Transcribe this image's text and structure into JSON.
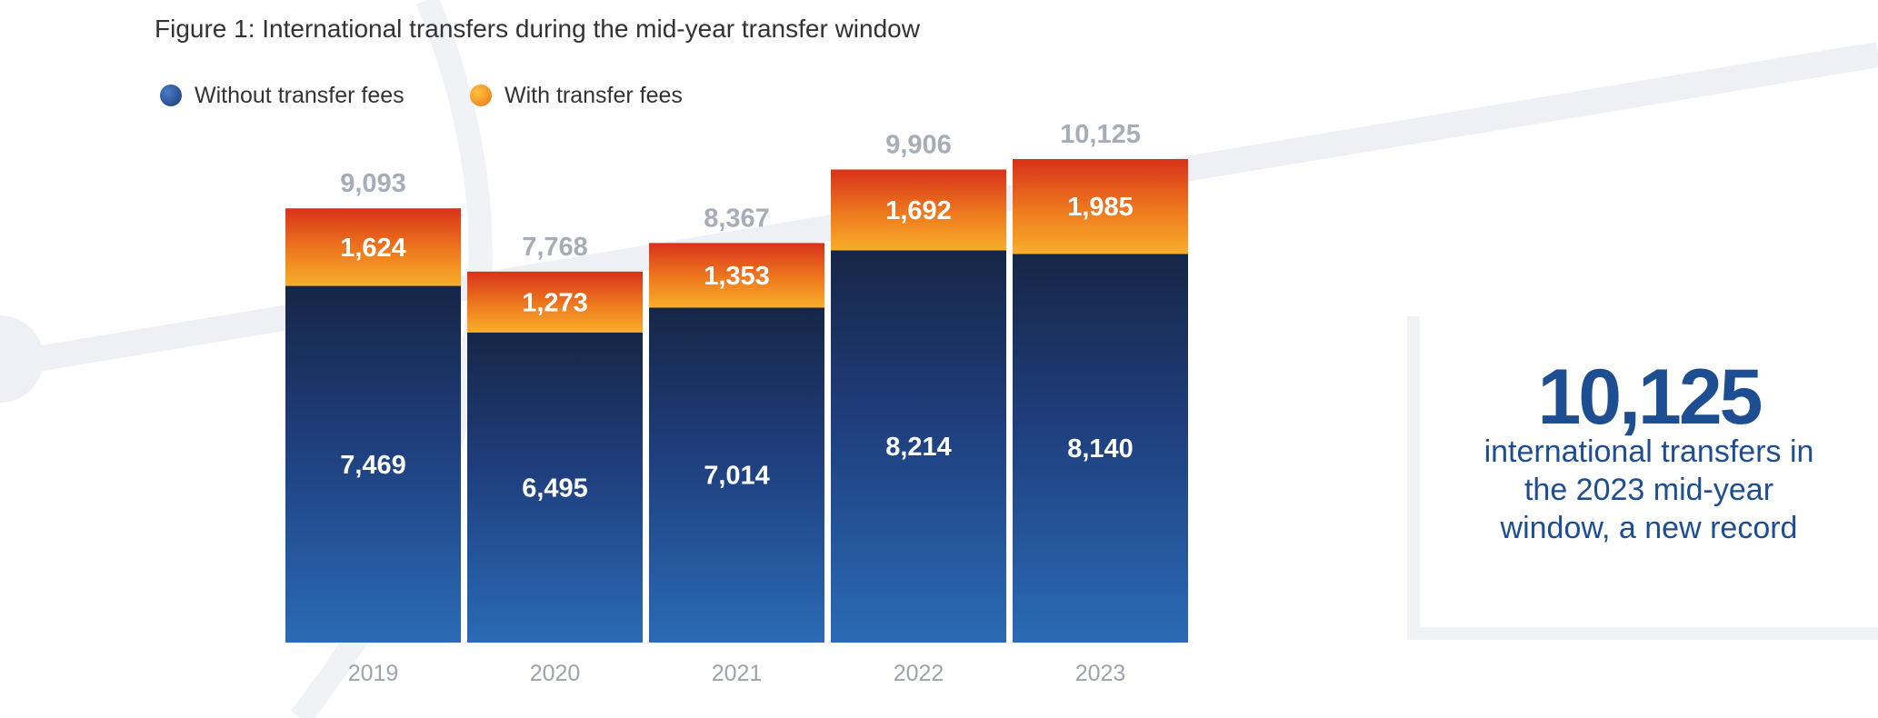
{
  "title": "Figure 1: International transfers during the mid-year transfer window",
  "legend": {
    "without_fees": "Without transfer fees",
    "with_fees": "With transfer fees"
  },
  "colors": {
    "without_fees": "#1f4a8f",
    "with_fees": "#f49a1f",
    "total_label": "#a5adb8",
    "axis_label": "#9ea3ab",
    "callout_text": "#1d4e92"
  },
  "callout": {
    "number": "10,125",
    "text": "international transfers in the 2023 mid-year window, a new record"
  },
  "chart_data": {
    "type": "bar",
    "stacked": true,
    "categories": [
      "2019",
      "2020",
      "2021",
      "2022",
      "2023"
    ],
    "series": [
      {
        "name": "Without transfer fees",
        "values": [
          7469,
          6495,
          7014,
          8214,
          8140
        ],
        "labels": [
          "7,469",
          "6,495",
          "7,014",
          "8,214",
          "8,140"
        ]
      },
      {
        "name": "With transfer fees",
        "values": [
          1624,
          1273,
          1353,
          1692,
          1985
        ],
        "labels": [
          "1,624",
          "1,273",
          "1,353",
          "1,692",
          "1,985"
        ]
      }
    ],
    "totals": [
      9093,
      7768,
      8367,
      9906,
      10125
    ],
    "total_labels": [
      "9,093",
      "7,768",
      "8,367",
      "9,906",
      "10,125"
    ],
    "ylim": [
      0,
      10125
    ],
    "grid": false,
    "legend_position": "top-left"
  }
}
